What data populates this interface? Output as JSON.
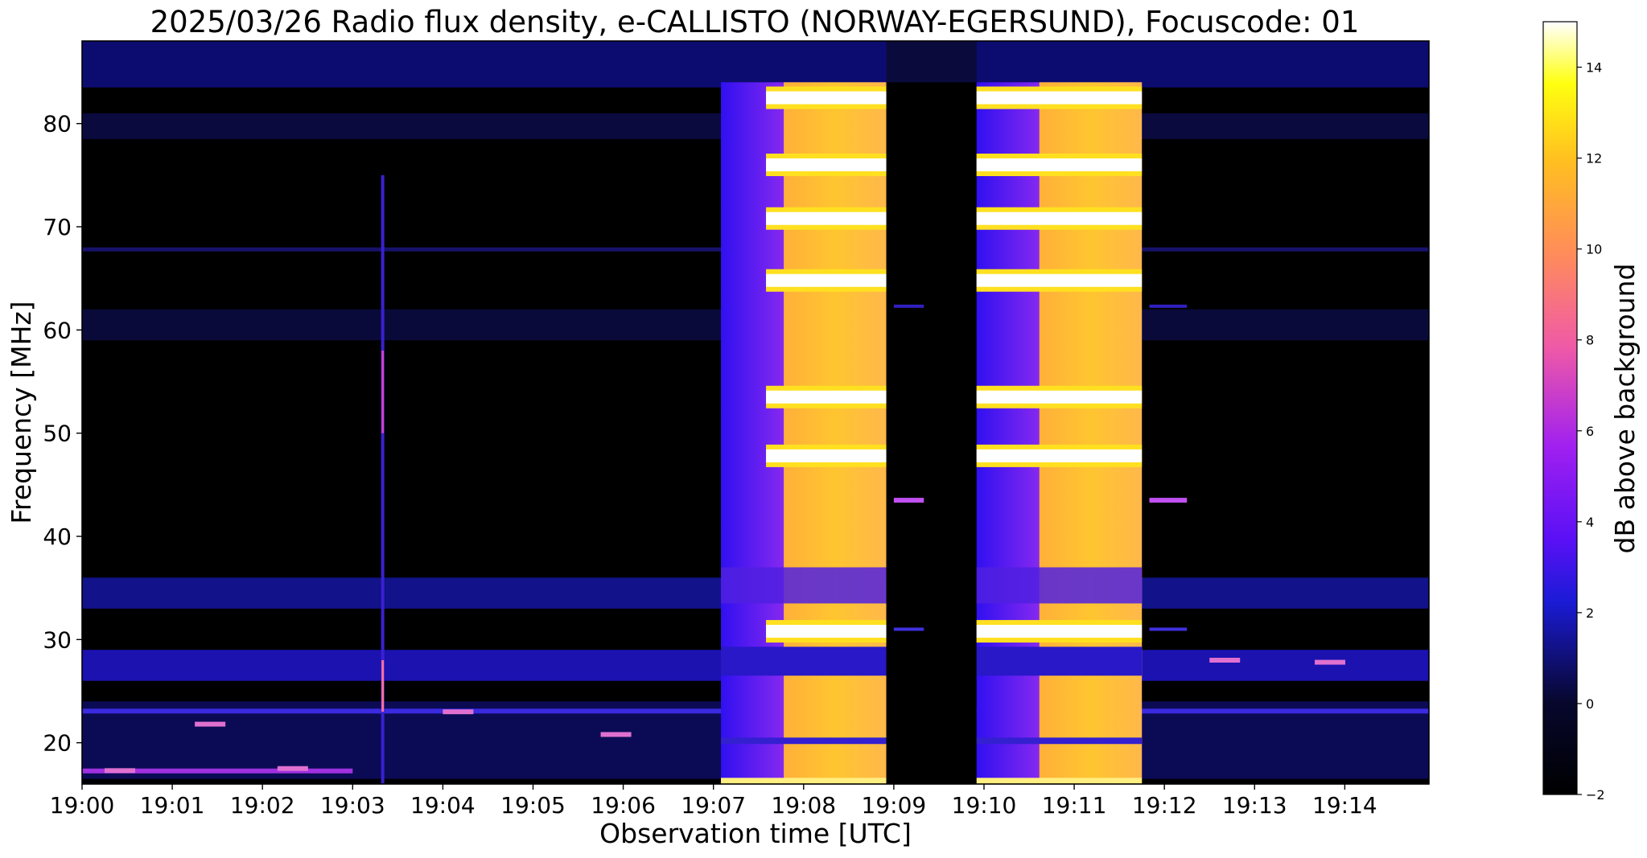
{
  "chart_data": {
    "type": "heatmap",
    "title": "2025/03/26  Radio flux density, e-CALLISTO (NORWAY-EGERSUND), Focuscode: 01",
    "xlabel": "Observation time [UTC]",
    "ylabel": "Frequency [MHz]",
    "xlim": [
      "19:00:00",
      "19:14:56"
    ],
    "ylim": [
      16,
      88
    ],
    "x_ticks": [
      "19:00",
      "19:01",
      "19:02",
      "19:03",
      "19:04",
      "19:05",
      "19:06",
      "19:07",
      "19:08",
      "19:09",
      "19:10",
      "19:11",
      "19:12",
      "19:13",
      "19:14"
    ],
    "y_ticks": [
      20,
      30,
      40,
      50,
      60,
      70,
      80
    ],
    "colormap": "gnuplot2",
    "colorbar": {
      "label": "dB above background",
      "range": [
        -2,
        15
      ],
      "ticks": [
        -2,
        0,
        2,
        4,
        6,
        8,
        10,
        12,
        14
      ]
    },
    "features": [
      {
        "kind": "burst-block",
        "start": "19:07:05",
        "end": "19:08:55",
        "fmin": 16,
        "fmax": 84
      },
      {
        "kind": "burst-block",
        "start": "19:09:55",
        "end": "19:11:45",
        "fmin": 16,
        "fmax": 84
      },
      {
        "kind": "vertical-spike",
        "time": "19:03:20",
        "fmin": 16,
        "fmax": 75
      },
      {
        "kind": "emission-line",
        "freq": 82.5,
        "start": "19:07:35",
        "end": "19:11:45"
      },
      {
        "kind": "emission-line",
        "freq": 76,
        "start": "19:07:35",
        "end": "19:11:45"
      },
      {
        "kind": "emission-line",
        "freq": 70.8,
        "start": "19:07:35",
        "end": "19:11:45"
      },
      {
        "kind": "emission-line",
        "freq": 64.8,
        "start": "19:07:35",
        "end": "19:11:45"
      },
      {
        "kind": "emission-line",
        "freq": 53.5,
        "start": "19:07:35",
        "end": "19:11:45"
      },
      {
        "kind": "emission-line",
        "freq": 47.8,
        "start": "19:07:35",
        "end": "19:11:45"
      },
      {
        "kind": "emission-line",
        "freq": 30.8,
        "start": "19:07:35",
        "end": "19:11:45"
      }
    ]
  }
}
